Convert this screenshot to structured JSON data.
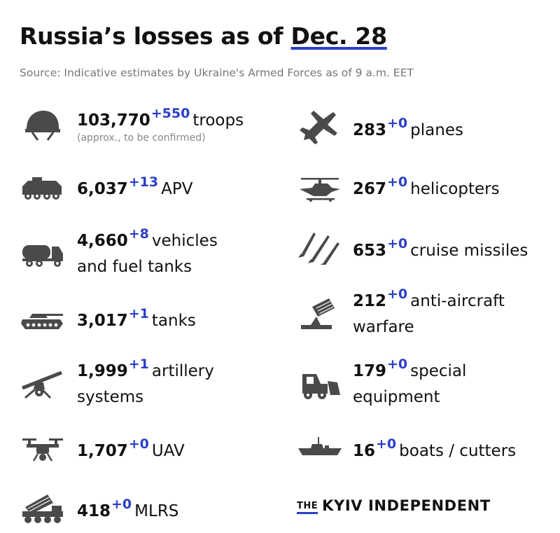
{
  "header": {
    "title_prefix": "Russia’s losses as of",
    "title_date": "Dec. 28",
    "source": "Source: Indicative estimates by Ukraine's Armed Forces as of 9 a.m. EET"
  },
  "colors": {
    "accent": "#2b3ec8",
    "icon": "#4a4a4a",
    "text": "#111111",
    "muted": "#777777"
  },
  "left": [
    {
      "icon": "helmet-icon",
      "value": "103,770",
      "delta": "+550",
      "label": "troops",
      "label2": "",
      "note": "(approx., to be confirmed)"
    },
    {
      "icon": "apv-icon",
      "value": "6,037",
      "delta": "+13",
      "label": "APV",
      "label2": "",
      "note": ""
    },
    {
      "icon": "fuel-truck-icon",
      "value": "4,660",
      "delta": "+8",
      "label": "vehicles",
      "label2": "and fuel tanks",
      "note": ""
    },
    {
      "icon": "tank-icon",
      "value": "3,017",
      "delta": "+1",
      "label": "tanks",
      "label2": "",
      "note": ""
    },
    {
      "icon": "artillery-icon",
      "value": "1,999",
      "delta": "+1",
      "label": "artillery",
      "label2": "systems",
      "note": ""
    },
    {
      "icon": "drone-icon",
      "value": "1,707",
      "delta": "+0",
      "label": "UAV",
      "label2": "",
      "note": ""
    },
    {
      "icon": "mlrs-icon",
      "value": "418",
      "delta": "+0",
      "label": "MLRS",
      "label2": "",
      "note": ""
    }
  ],
  "right": [
    {
      "icon": "plane-icon",
      "value": "283",
      "delta": "+0",
      "label": "planes",
      "label2": ""
    },
    {
      "icon": "helicopter-icon",
      "value": "267",
      "delta": "+0",
      "label": "helicopters",
      "label2": ""
    },
    {
      "icon": "missile-icon",
      "value": "653",
      "delta": "+0",
      "label": "cruise missiles",
      "label2": ""
    },
    {
      "icon": "anti-aircraft-icon",
      "value": "212",
      "delta": "+0",
      "label": "anti-aircraft",
      "label2": "warfare"
    },
    {
      "icon": "special-equipment-icon",
      "value": "179",
      "delta": "+0",
      "label": "special",
      "label2": "equipment"
    },
    {
      "icon": "boat-icon",
      "value": "16",
      "delta": "+0",
      "label": "boats / cutters",
      "label2": ""
    }
  ],
  "brand": {
    "the": "THE",
    "name": "KYIV INDEPENDENT"
  }
}
